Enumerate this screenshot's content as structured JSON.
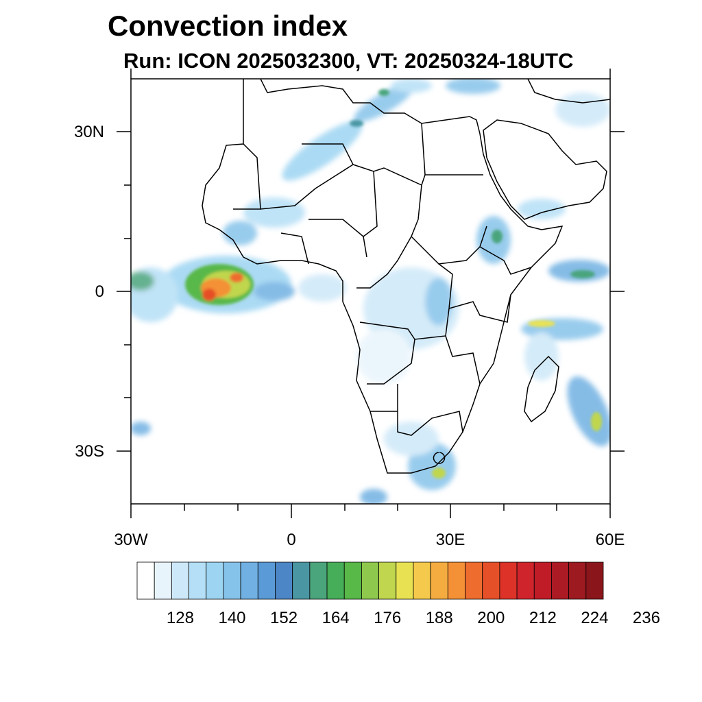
{
  "title": "Convection index",
  "subtitle": "Run: ICON 2025032300,  VT: 20250324-18UTC",
  "axes": {
    "lat_labels": [
      "30N",
      "0",
      "30S"
    ],
    "lon_labels": [
      "30W",
      "0",
      "30E",
      "60E"
    ]
  },
  "colorbar": {
    "labels": [
      "128",
      "140",
      "152",
      "164",
      "176",
      "188",
      "200",
      "212",
      "224",
      "236"
    ],
    "colors": [
      "#ffffff",
      "#e8f4fc",
      "#cde8f8",
      "#b5dff6",
      "#9cd4f2",
      "#86c3ea",
      "#70b0e2",
      "#5a9ad6",
      "#4c86c6",
      "#4a96a2",
      "#4aa47c",
      "#46ae58",
      "#58b848",
      "#8ec84c",
      "#c0d64e",
      "#e8e252",
      "#f5ca4c",
      "#f4ac40",
      "#f49036",
      "#ee6c2e",
      "#e65028",
      "#dc3228",
      "#d0242c",
      "#c01c28",
      "#ac1a24",
      "#9c1a20",
      "#8a161c"
    ]
  },
  "convective_areas": [
    {
      "region": "Gulf of Guinea / equatorial Atlantic",
      "max_class": "high"
    },
    {
      "region": "Southern Africa",
      "max_class": "moderate"
    },
    {
      "region": "Madagascar / SW Indian Ocean",
      "max_class": "moderate"
    },
    {
      "region": "Congo basin",
      "max_class": "low"
    },
    {
      "region": "Ethiopian highlands",
      "max_class": "low"
    },
    {
      "region": "Sahara band / NW Africa",
      "max_class": "low"
    }
  ]
}
